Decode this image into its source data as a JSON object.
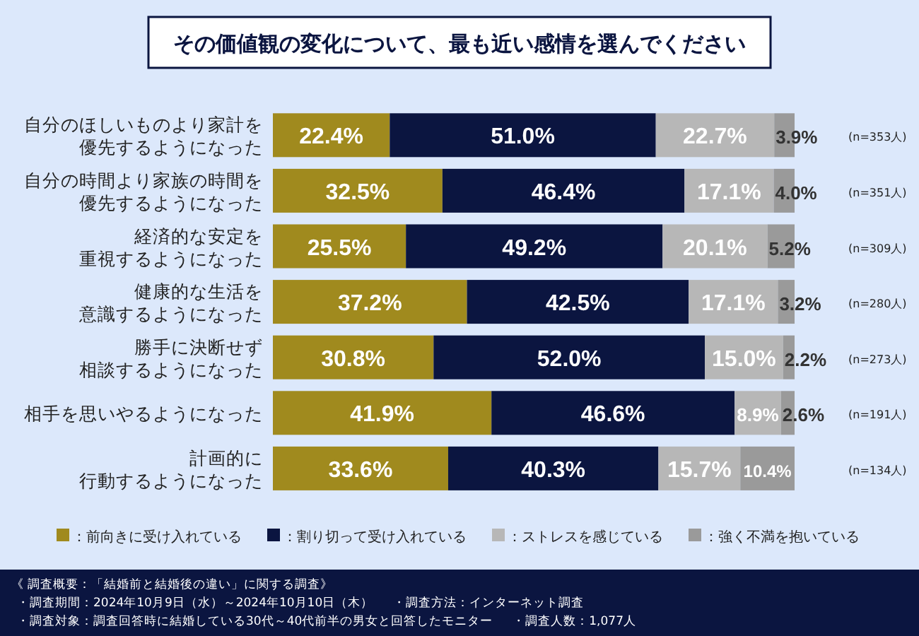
{
  "chart_data": {
    "type": "bar",
    "orientation": "horizontal",
    "stacked": true,
    "title": "その価値観の変化について、最も近い感情を選んでください",
    "categories": [
      "自分のほしいものより家計を優先するようになった",
      "自分の時間より家族の時間を優先するようになった",
      "経済的な安定を重視するようになった",
      "健康的な生活を意識するようになった",
      "勝手に決断せず相談するようになった",
      "相手を思いやるようになった",
      "計画的に行動するようになった"
    ],
    "xlim": [
      0,
      100
    ],
    "legend": "bottom",
    "series": [
      {
        "name": "：前向きに受け入れている",
        "color": "#a08a1e",
        "values": [
          22.4,
          32.5,
          25.5,
          37.2,
          30.8,
          41.9,
          33.6
        ],
        "value_labels": [
          "22.4%",
          "32.5%",
          "25.5%",
          "37.2%",
          "30.8%",
          "41.9%",
          "33.6%"
        ]
      },
      {
        "name": "：割り切って受け入れている",
        "color": "#0b1540",
        "values": [
          51.0,
          46.4,
          49.2,
          42.5,
          52.0,
          46.6,
          40.3
        ],
        "value_labels": [
          "51.0%",
          "46.4%",
          "49.2%",
          "42.5%",
          "52.0%",
          "46.6%",
          "40.3%"
        ]
      },
      {
        "name": "：ストレスを感じている",
        "color": "#b7b7b7",
        "values": [
          22.7,
          17.1,
          20.1,
          17.1,
          15.0,
          8.9,
          15.7
        ],
        "value_labels": [
          "22.7%",
          "17.1%",
          "20.1%",
          "17.1%",
          "15.0%",
          "8.9%",
          "15.7%"
        ]
      },
      {
        "name": "：強く不満を抱いている",
        "color": "#9a9a9a",
        "values": [
          3.9,
          4.0,
          5.2,
          3.2,
          2.2,
          2.6,
          10.4
        ],
        "value_labels": [
          "3.9%",
          "4.0%",
          "5.2%",
          "3.2%",
          "2.2%",
          "2.6%",
          "10.4%"
        ]
      }
    ],
    "annotations": [
      "(n=353人)",
      "(n=351人)",
      "(n=309人)",
      "(n=280人)",
      "(n=273人)",
      "(n=191人)",
      "(n=134人)",
      "《 調査概要：「結婚前と結婚後の違い」に関する調査》",
      "・調査期間：2024年10月9日（水）～2024年10月10日（木）",
      "・調査方法：インターネット調査",
      "・調査対象：調査回答時に結婚している30代～40代前半の男女と回答したモニター",
      "・調査人数：1,077人"
    ]
  }
}
